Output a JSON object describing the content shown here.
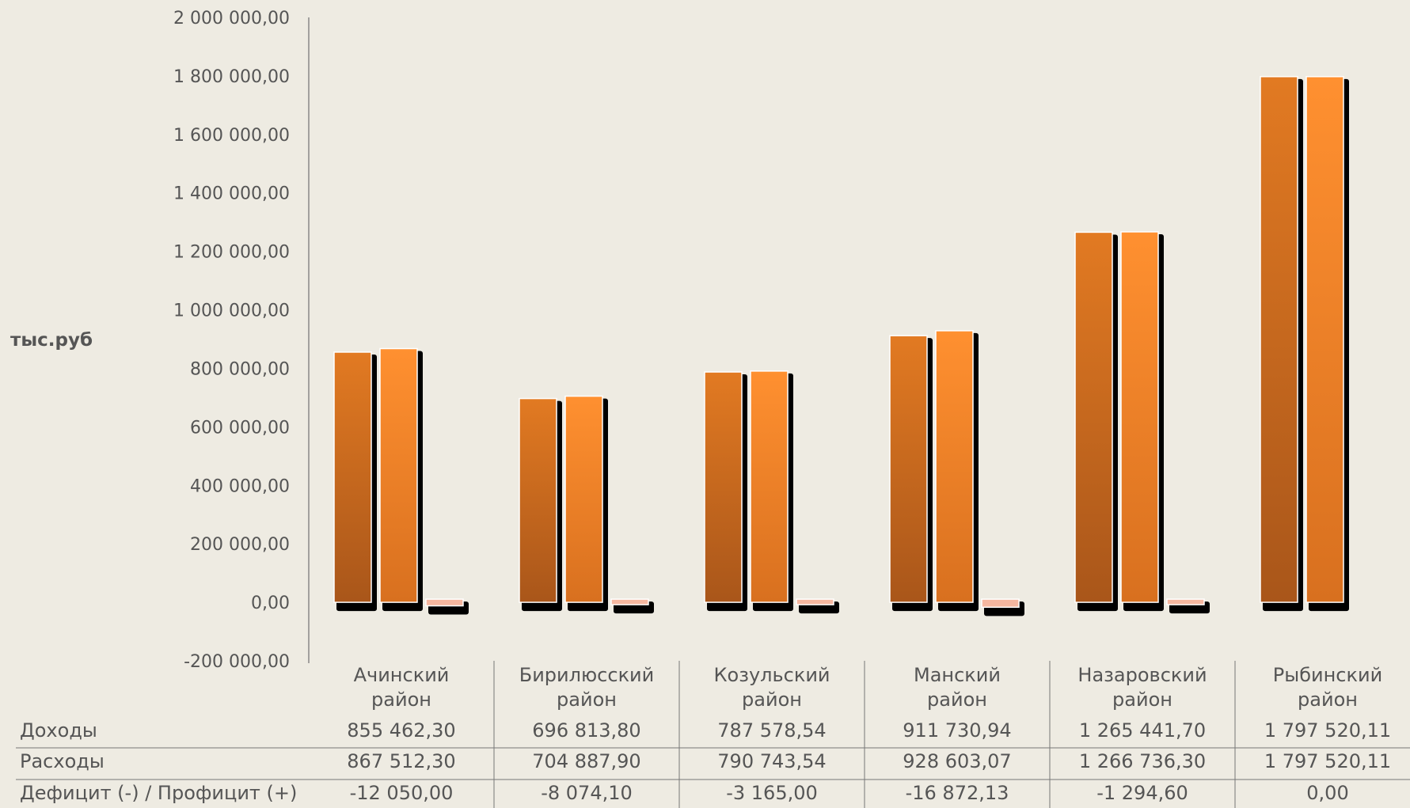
{
  "chart_data": {
    "type": "bar",
    "ylabel": "тыс.руб",
    "ylim": [
      -200000,
      2000000
    ],
    "yticks": [
      "2 000 000,00",
      "1 800 000,00",
      "1 600 000,00",
      "1 400 000,00",
      "1 200 000,00",
      "1 000 000,00",
      "800 000,00",
      "600 000,00",
      "400 000,00",
      "200 000,00",
      "0,00",
      "-200 000,00"
    ],
    "categories": [
      [
        "Ачинский",
        "район"
      ],
      [
        "Бирилюсский",
        "район"
      ],
      [
        "Козульский",
        "район"
      ],
      [
        "Манский",
        "район"
      ],
      [
        "Назаровский",
        "район"
      ],
      [
        "Рыбинский",
        "район"
      ]
    ],
    "series": [
      {
        "name": "Доходы",
        "values": [
          855462.3,
          696813.8,
          787578.54,
          911730.94,
          1265441.7,
          1797520.11
        ],
        "labels": [
          "855 462,30",
          "696 813,80",
          "787 578,54",
          "911 730,94",
          "1 265 441,70",
          "1 797 520,11"
        ],
        "color": "#e07820"
      },
      {
        "name": "Расходы",
        "values": [
          867512.3,
          704887.9,
          790743.54,
          928603.07,
          1266736.3,
          1797520.11
        ],
        "labels": [
          "867 512,30",
          "704 887,90",
          "790 743,54",
          "928 603,07",
          "1 266 736,30",
          "1 797 520,11"
        ],
        "color": "#ff8f2a"
      },
      {
        "name": "Дефицит (-) / Профицит (+)",
        "values": [
          -12050.0,
          -8074.1,
          -3165.0,
          -16872.13,
          -1294.6,
          0.0
        ],
        "labels": [
          "-12 050,00",
          "-8 074,10",
          "-3 165,00",
          "-16 872,13",
          "-1 294,60",
          "0,00"
        ],
        "color": "#f5b7a0"
      }
    ],
    "grid": false,
    "legend": "data table below chart"
  }
}
